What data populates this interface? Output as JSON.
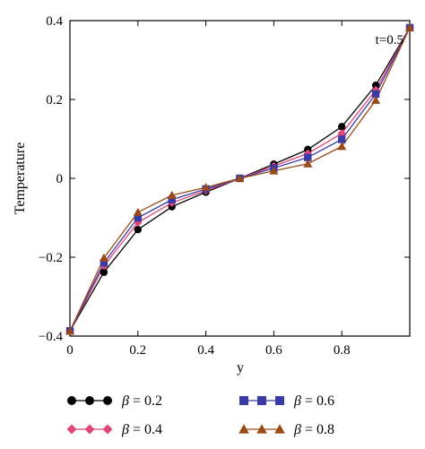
{
  "chart_data": {
    "type": "line",
    "title": "",
    "xlabel": "y",
    "ylabel": "Temperature",
    "xlim": [
      0,
      1
    ],
    "ylim": [
      -0.4,
      0.4
    ],
    "xticks": [
      0,
      0.2,
      0.4,
      0.6,
      0.8
    ],
    "xtick_labels": [
      "0",
      "0.2",
      "0.4",
      "0.6",
      "0.8"
    ],
    "yticks": [
      -0.4,
      -0.2,
      0,
      0.2,
      0.4
    ],
    "ytick_labels": [
      "−0.4",
      "−0.2",
      "0",
      "0.2",
      "0.4"
    ],
    "grid": false,
    "legend_position": "bottom",
    "annotation": "t=0.5",
    "x": [
      0,
      0.1,
      0.2,
      0.3,
      0.4,
      0.5,
      0.6,
      0.7,
      0.8,
      0.9,
      1.0
    ],
    "series": [
      {
        "symbol": "β",
        "value_label": " = 0.2",
        "color": "#000000",
        "marker": "circle",
        "values": [
          -0.387,
          -0.238,
          -0.13,
          -0.072,
          -0.035,
          0,
          0.036,
          0.073,
          0.131,
          0.236,
          0.382
        ]
      },
      {
        "symbol": "β",
        "value_label": " = 0.4",
        "color": "#e0457b",
        "marker": "diamond",
        "values": [
          -0.387,
          -0.222,
          -0.112,
          -0.062,
          -0.031,
          0,
          0.031,
          0.063,
          0.114,
          0.224,
          0.382
        ]
      },
      {
        "symbol": "β",
        "value_label": " = 0.6",
        "color": "#3a3aa6",
        "marker": "square",
        "values": [
          -0.387,
          -0.214,
          -0.1,
          -0.054,
          -0.027,
          0,
          0.026,
          0.053,
          0.099,
          0.214,
          0.382
        ]
      },
      {
        "symbol": "β",
        "value_label": " = 0.8",
        "color": "#9a4a16",
        "marker": "triangle",
        "values": [
          -0.387,
          -0.202,
          -0.086,
          -0.043,
          -0.023,
          0,
          0.019,
          0.037,
          0.081,
          0.198,
          0.382
        ]
      }
    ]
  }
}
